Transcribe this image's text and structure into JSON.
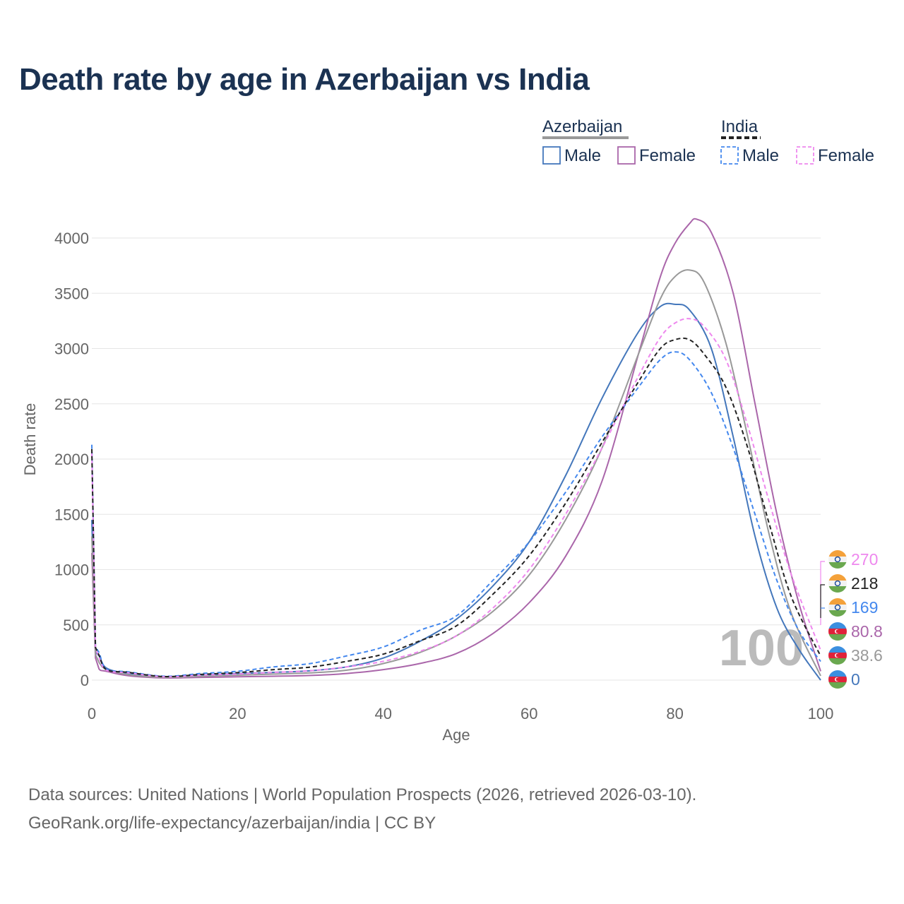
{
  "title": "Death rate by age in Azerbaijan vs India",
  "legend": {
    "groups": [
      {
        "name": "Azerbaijan",
        "line_color": "#999999",
        "dashed": false,
        "items": [
          {
            "label": "Male",
            "color": "#4477bb"
          },
          {
            "label": "Female",
            "color": "#aa66aa"
          }
        ]
      },
      {
        "name": "India",
        "line_color": "#222222",
        "dashed": true,
        "items": [
          {
            "label": "Male",
            "color": "#4488ee"
          },
          {
            "label": "Female",
            "color": "#ee88ee"
          }
        ]
      }
    ]
  },
  "chart_data": {
    "type": "line",
    "title": "Death rate by age in Azerbaijan vs India",
    "xlabel": "Age",
    "ylabel": "Death rate",
    "xlim": [
      0,
      100
    ],
    "ylim": [
      0,
      4000
    ],
    "xticks": [
      0,
      20,
      40,
      60,
      80,
      100
    ],
    "yticks": [
      0,
      500,
      1000,
      1500,
      2000,
      2500,
      3000,
      3500,
      4000
    ],
    "grid": true,
    "cursor_age_label": "100",
    "series": [
      {
        "name": "Azerbaijan Male",
        "color": "#4477bb",
        "dashed": false,
        "end_label": "0",
        "points": [
          [
            0,
            1450
          ],
          [
            0.5,
            250
          ],
          [
            1,
            220
          ],
          [
            2,
            110
          ],
          [
            5,
            60
          ],
          [
            10,
            30
          ],
          [
            15,
            45
          ],
          [
            20,
            60
          ],
          [
            25,
            70
          ],
          [
            30,
            85
          ],
          [
            35,
            120
          ],
          [
            40,
            200
          ],
          [
            45,
            350
          ],
          [
            50,
            550
          ],
          [
            55,
            850
          ],
          [
            60,
            1250
          ],
          [
            65,
            1850
          ],
          [
            70,
            2550
          ],
          [
            75,
            3150
          ],
          [
            78,
            3380
          ],
          [
            80,
            3400
          ],
          [
            82,
            3350
          ],
          [
            85,
            3000
          ],
          [
            88,
            2200
          ],
          [
            91,
            1300
          ],
          [
            94,
            650
          ],
          [
            97,
            280
          ],
          [
            100,
            0
          ]
        ]
      },
      {
        "name": "Azerbaijan Female",
        "color": "#aa66aa",
        "dashed": false,
        "end_label": "80.8",
        "points": [
          [
            0,
            1150
          ],
          [
            0.5,
            200
          ],
          [
            1,
            100
          ],
          [
            2,
            80
          ],
          [
            5,
            40
          ],
          [
            10,
            20
          ],
          [
            15,
            25
          ],
          [
            20,
            30
          ],
          [
            25,
            35
          ],
          [
            30,
            42
          ],
          [
            35,
            60
          ],
          [
            40,
            95
          ],
          [
            45,
            150
          ],
          [
            50,
            240
          ],
          [
            55,
            420
          ],
          [
            60,
            700
          ],
          [
            65,
            1120
          ],
          [
            70,
            1800
          ],
          [
            75,
            2950
          ],
          [
            78,
            3650
          ],
          [
            80,
            3950
          ],
          [
            82,
            4130
          ],
          [
            83,
            4170
          ],
          [
            85,
            4050
          ],
          [
            88,
            3500
          ],
          [
            91,
            2500
          ],
          [
            94,
            1500
          ],
          [
            97,
            700
          ],
          [
            100,
            80.8
          ]
        ]
      },
      {
        "name": "Azerbaijan (both sexes)",
        "color": "#999999",
        "dashed": false,
        "end_label": "38.6",
        "points": [
          [
            0,
            1300
          ],
          [
            0.5,
            230
          ],
          [
            1,
            160
          ],
          [
            2,
            95
          ],
          [
            5,
            50
          ],
          [
            10,
            25
          ],
          [
            15,
            35
          ],
          [
            20,
            45
          ],
          [
            25,
            55
          ],
          [
            30,
            65
          ],
          [
            35,
            90
          ],
          [
            40,
            150
          ],
          [
            45,
            250
          ],
          [
            50,
            400
          ],
          [
            55,
            620
          ],
          [
            60,
            950
          ],
          [
            65,
            1450
          ],
          [
            70,
            2100
          ],
          [
            75,
            2950
          ],
          [
            78,
            3450
          ],
          [
            80,
            3650
          ],
          [
            82,
            3710
          ],
          [
            84,
            3600
          ],
          [
            87,
            3050
          ],
          [
            90,
            2200
          ],
          [
            93,
            1300
          ],
          [
            96,
            600
          ],
          [
            100,
            38.6
          ]
        ]
      },
      {
        "name": "India Male",
        "color": "#4488ee",
        "dashed": true,
        "end_label": "169",
        "points": [
          [
            0,
            2130
          ],
          [
            0.5,
            300
          ],
          [
            1,
            250
          ],
          [
            2,
            100
          ],
          [
            5,
            75
          ],
          [
            10,
            35
          ],
          [
            15,
            60
          ],
          [
            20,
            80
          ],
          [
            25,
            120
          ],
          [
            30,
            150
          ],
          [
            35,
            220
          ],
          [
            40,
            300
          ],
          [
            45,
            450
          ],
          [
            50,
            580
          ],
          [
            55,
            900
          ],
          [
            60,
            1250
          ],
          [
            65,
            1700
          ],
          [
            70,
            2200
          ],
          [
            75,
            2650
          ],
          [
            78,
            2900
          ],
          [
            80,
            2970
          ],
          [
            82,
            2900
          ],
          [
            85,
            2600
          ],
          [
            88,
            2100
          ],
          [
            91,
            1500
          ],
          [
            94,
            900
          ],
          [
            97,
            450
          ],
          [
            100,
            169
          ]
        ]
      },
      {
        "name": "India Female",
        "color": "#ee88ee",
        "dashed": true,
        "end_label": "270",
        "points": [
          [
            0,
            2050
          ],
          [
            0.5,
            290
          ],
          [
            1,
            200
          ],
          [
            2,
            90
          ],
          [
            5,
            65
          ],
          [
            10,
            30
          ],
          [
            15,
            45
          ],
          [
            20,
            55
          ],
          [
            25,
            70
          ],
          [
            30,
            85
          ],
          [
            35,
            120
          ],
          [
            40,
            170
          ],
          [
            45,
            260
          ],
          [
            50,
            400
          ],
          [
            55,
            650
          ],
          [
            60,
            1000
          ],
          [
            65,
            1500
          ],
          [
            70,
            2100
          ],
          [
            75,
            2750
          ],
          [
            78,
            3100
          ],
          [
            80,
            3230
          ],
          [
            82,
            3270
          ],
          [
            84,
            3200
          ],
          [
            87,
            2900
          ],
          [
            90,
            2300
          ],
          [
            93,
            1600
          ],
          [
            96,
            950
          ],
          [
            100,
            270
          ]
        ]
      },
      {
        "name": "India (both sexes)",
        "color": "#222222",
        "dashed": true,
        "end_label": "218",
        "points": [
          [
            0,
            2090
          ],
          [
            0.5,
            295
          ],
          [
            1,
            225
          ],
          [
            2,
            95
          ],
          [
            5,
            70
          ],
          [
            10,
            32
          ],
          [
            15,
            52
          ],
          [
            20,
            68
          ],
          [
            25,
            95
          ],
          [
            30,
            118
          ],
          [
            35,
            170
          ],
          [
            40,
            235
          ],
          [
            45,
            355
          ],
          [
            50,
            490
          ],
          [
            55,
            775
          ],
          [
            60,
            1125
          ],
          [
            65,
            1600
          ],
          [
            70,
            2150
          ],
          [
            75,
            2700
          ],
          [
            78,
            3000
          ],
          [
            80,
            3080
          ],
          [
            82,
            3080
          ],
          [
            84,
            2950
          ],
          [
            87,
            2650
          ],
          [
            90,
            2100
          ],
          [
            93,
            1400
          ],
          [
            96,
            750
          ],
          [
            100,
            218
          ]
        ]
      }
    ]
  },
  "footer": {
    "line1": "Data sources: United Nations | World Population Prospects (2026, retrieved 2026-03-10).",
    "line2": "GeoRank.org/life-expectancy/azerbaijan/india | CC BY"
  }
}
